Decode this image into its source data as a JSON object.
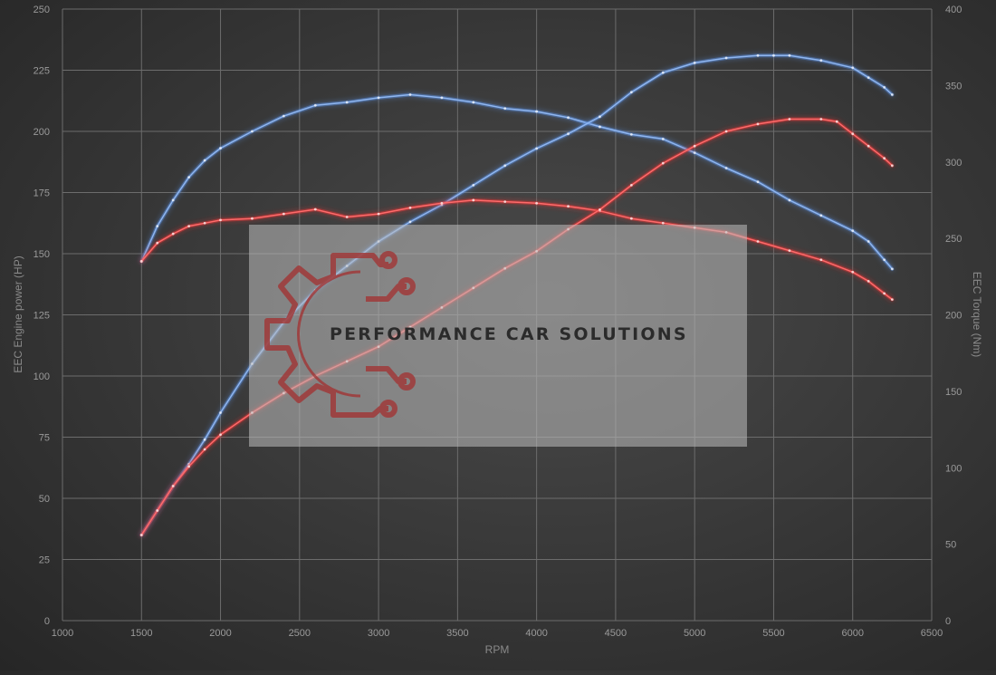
{
  "chart_data": {
    "type": "line",
    "xlabel": "RPM",
    "ylabel_left": "EEC Engine power (HP)",
    "ylabel_right": "EEC Torque (Nm)",
    "xlim": [
      1000,
      6500
    ],
    "ylim_left": [
      0,
      250
    ],
    "ylim_right": [
      0,
      400
    ],
    "x_ticks": [
      "1000",
      "1500",
      "2000",
      "2500",
      "3000",
      "3500",
      "4000",
      "4500",
      "5000",
      "5500",
      "6000",
      "6500"
    ],
    "y_left_ticks": [
      "0",
      "25",
      "50",
      "75",
      "100",
      "125",
      "150",
      "175",
      "200",
      "225",
      "250"
    ],
    "y_right_ticks": [
      "0",
      "50",
      "100",
      "150",
      "200",
      "250",
      "300",
      "350",
      "400"
    ],
    "grid": true,
    "series": [
      {
        "axis": "right",
        "color": "#5b8fde",
        "x": [
          1500,
          1600,
          1700,
          1800,
          1900,
          2000,
          2200,
          2400,
          2600,
          2800,
          3000,
          3200,
          3400,
          3600,
          3800,
          4000,
          4200,
          4400,
          4600,
          4800,
          5000,
          5200,
          5400,
          5600,
          5800,
          6000,
          6100,
          6200,
          6250
        ],
        "y": [
          235,
          258,
          275,
          290,
          301,
          309,
          320,
          330,
          337,
          339,
          342,
          344,
          342,
          339,
          335,
          333,
          329,
          323,
          318,
          315,
          306,
          296,
          287,
          275,
          265,
          255,
          248,
          236,
          230
        ]
      },
      {
        "axis": "left",
        "color": "#5b8fde",
        "x": [
          1500,
          1600,
          1700,
          1800,
          1900,
          2000,
          2200,
          2400,
          2600,
          2800,
          3000,
          3200,
          3400,
          3600,
          3800,
          4000,
          4200,
          4400,
          4600,
          4800,
          5000,
          5200,
          5400,
          5500,
          5600,
          5800,
          6000,
          6100,
          6200,
          6250
        ],
        "y": [
          35,
          45,
          55,
          64,
          74,
          85,
          105,
          122,
          135,
          145,
          155,
          163,
          170,
          178,
          186,
          193,
          199,
          206,
          216,
          224,
          228,
          230,
          231,
          231,
          231,
          229,
          226,
          222,
          218,
          215
        ]
      },
      {
        "axis": "right",
        "color": "#e03030",
        "x": [
          1500,
          1600,
          1700,
          1800,
          1900,
          2000,
          2200,
          2400,
          2600,
          2800,
          3000,
          3200,
          3400,
          3600,
          3800,
          4000,
          4200,
          4400,
          4600,
          4800,
          5000,
          5200,
          5400,
          5600,
          5800,
          6000,
          6100,
          6200,
          6250
        ],
        "y": [
          235,
          247,
          253,
          258,
          260,
          262,
          263,
          266,
          269,
          264,
          266,
          270,
          273,
          275,
          274,
          273,
          271,
          268,
          263,
          260,
          257,
          254,
          248,
          242,
          236,
          228,
          222,
          214,
          210
        ]
      },
      {
        "axis": "left",
        "color": "#e03030",
        "x": [
          1500,
          1600,
          1700,
          1800,
          1900,
          2000,
          2200,
          2400,
          2600,
          2800,
          3000,
          3200,
          3400,
          3600,
          3800,
          4000,
          4200,
          4400,
          4600,
          4800,
          5000,
          5200,
          5400,
          5600,
          5800,
          5900,
          6000,
          6100,
          6200,
          6250
        ],
        "y": [
          35,
          45,
          55,
          63,
          70,
          76,
          85,
          93,
          100,
          106,
          112,
          120,
          128,
          136,
          144,
          151,
          160,
          168,
          178,
          187,
          194,
          200,
          203,
          205,
          205,
          204,
          199,
          194,
          189,
          186
        ]
      }
    ]
  },
  "watermark": {
    "text": "PERFORMANCE CAR SOLUTIONS"
  }
}
